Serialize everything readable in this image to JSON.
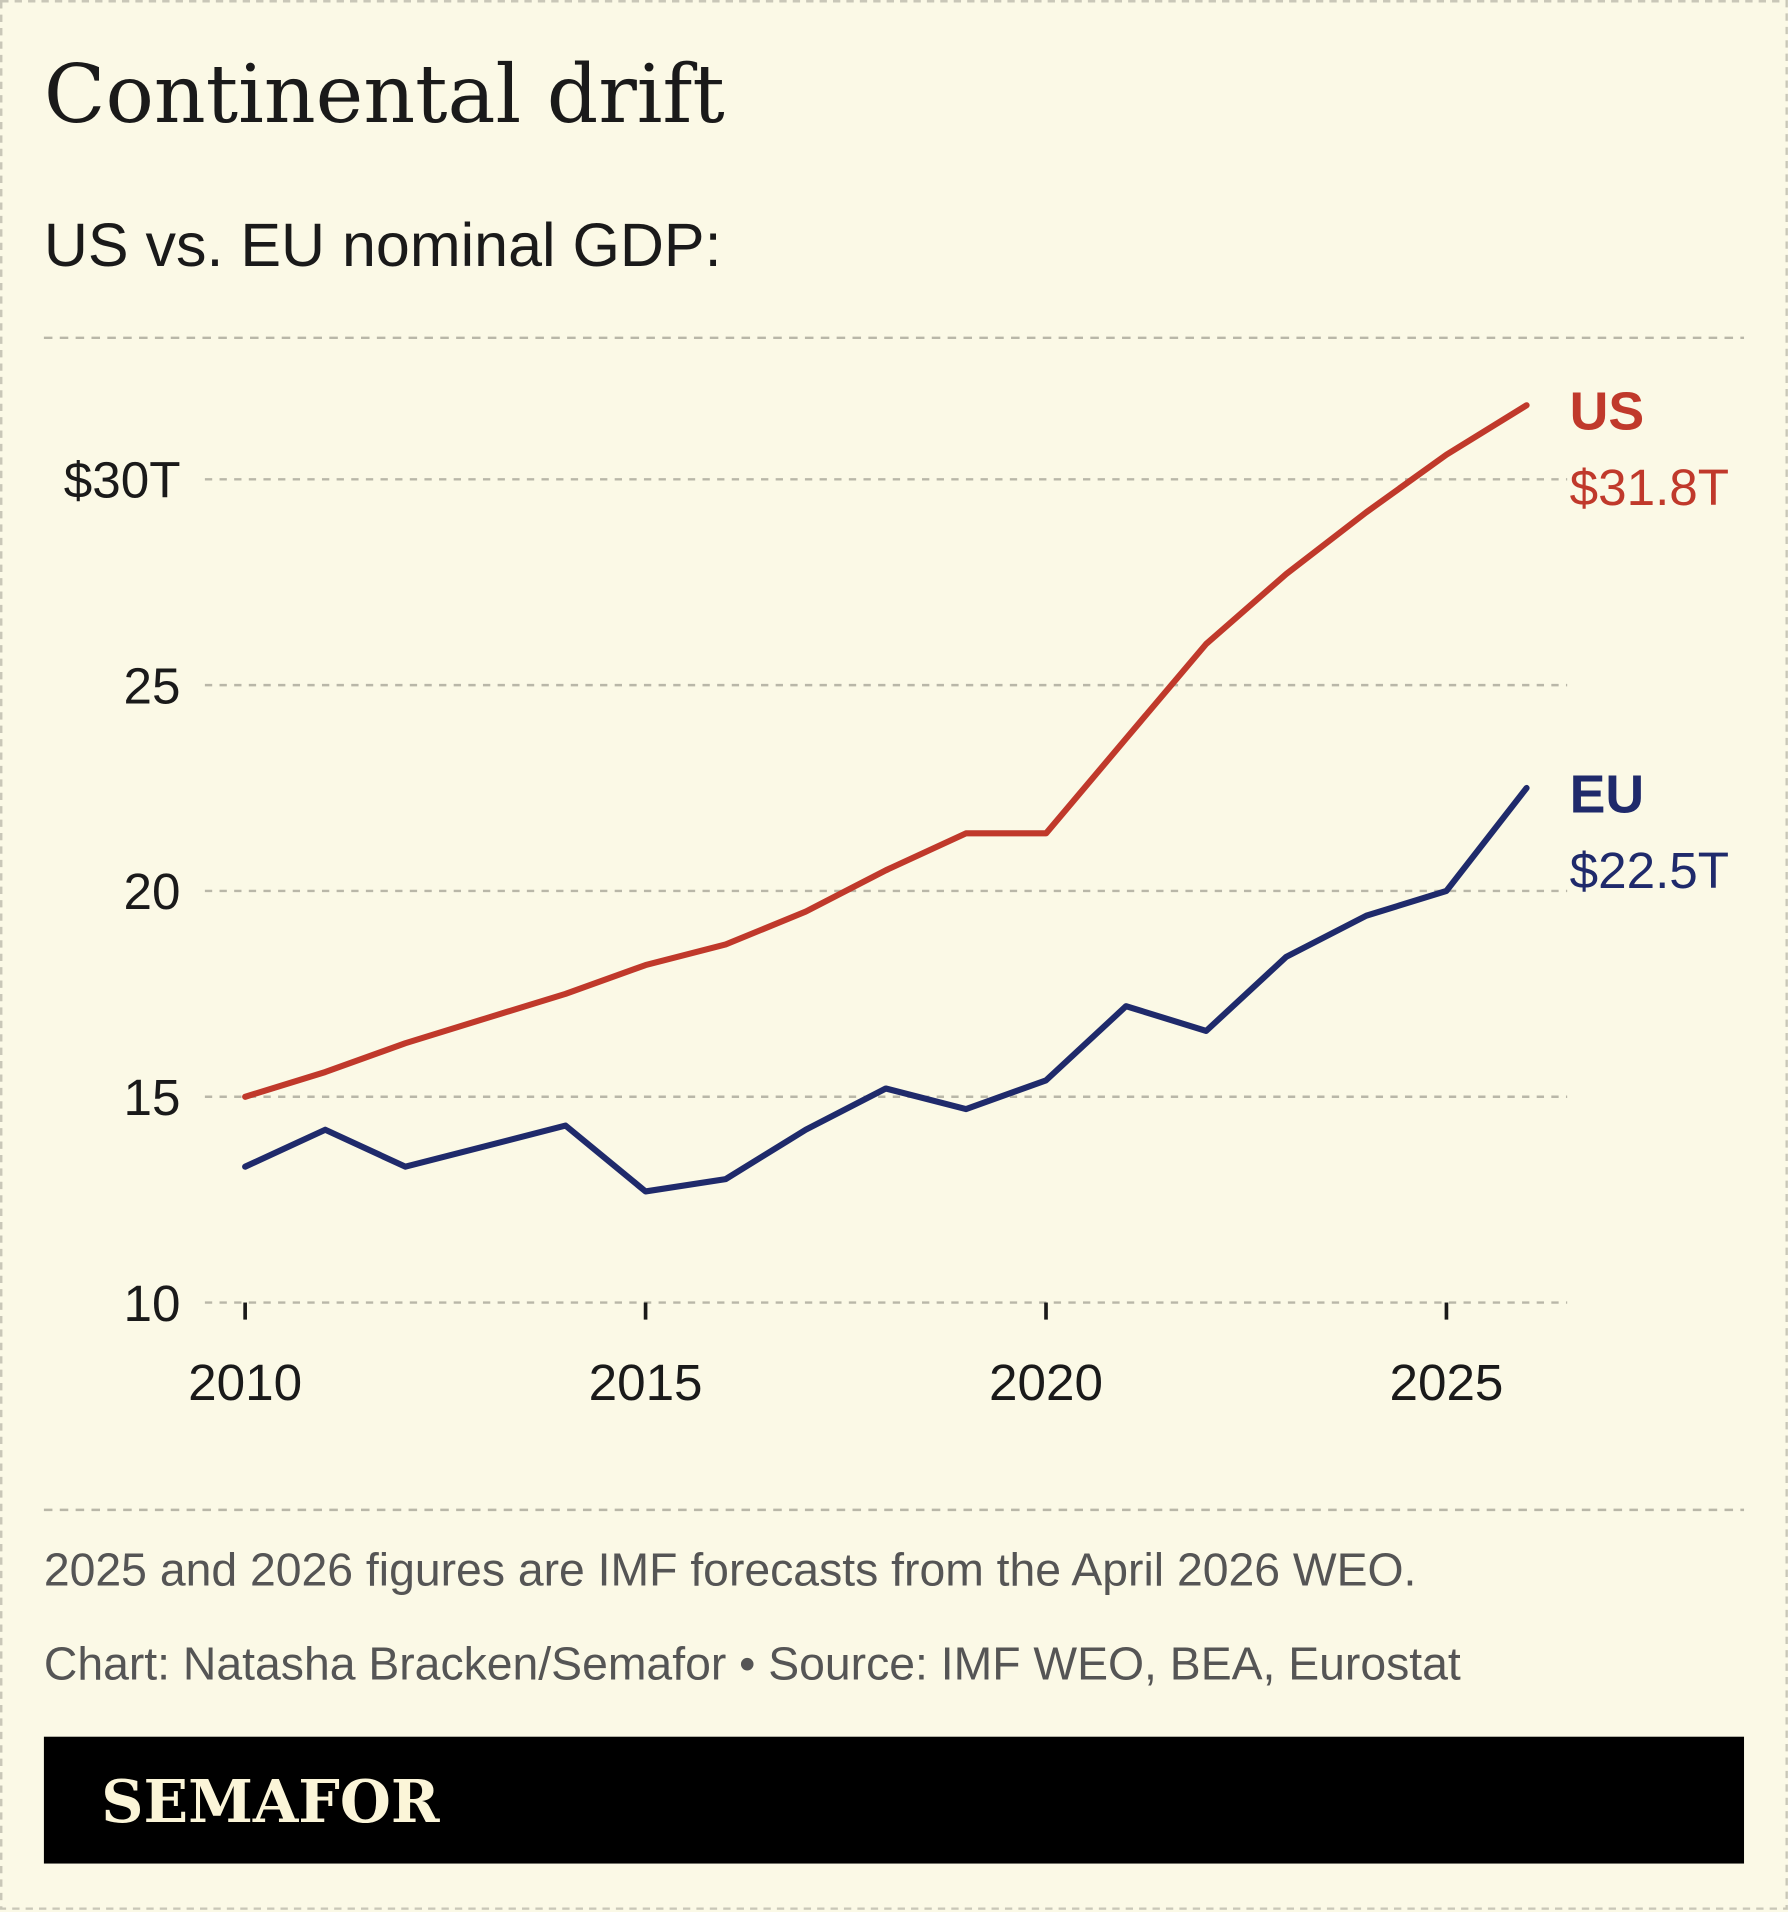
{
  "title": "Continental drift",
  "subtitle": "US vs. EU nominal GDP:",
  "note": "2025 and 2026 figures are IMF forecasts from the April 2026 WEO.",
  "credit": "Chart: Natasha Bracken/Semafor • Source: IMF WEO, BEA, Eurostat",
  "brand": "SEMAFOR",
  "colors": {
    "background": "#fbf9e6",
    "us": "#c0392b",
    "eu": "#1f2a6b",
    "grid": "#b9b7a8",
    "brand_bar": "#000000",
    "brand_text": "#fbf5d8"
  },
  "chart_data": {
    "type": "line",
    "x": [
      2010,
      2011,
      2012,
      2013,
      2014,
      2015,
      2016,
      2017,
      2018,
      2019,
      2020,
      2021,
      2022,
      2023,
      2024,
      2025,
      2026
    ],
    "series": [
      {
        "name": "US",
        "end_label": "$31.8T",
        "color": "#c0392b",
        "values": [
          15.0,
          15.6,
          16.3,
          16.9,
          17.5,
          18.2,
          18.7,
          19.5,
          20.5,
          21.4,
          21.4,
          23.7,
          26.0,
          27.7,
          29.2,
          30.6,
          31.8
        ]
      },
      {
        "name": "EU",
        "end_label": "$22.5T",
        "color": "#1f2a6b",
        "values": [
          13.3,
          14.2,
          13.3,
          13.8,
          14.3,
          12.7,
          13.0,
          14.2,
          15.2,
          14.7,
          15.4,
          17.2,
          16.6,
          18.4,
          19.4,
          20.0,
          22.5
        ]
      }
    ],
    "ylim": [
      10,
      30
    ],
    "yticks": [
      10,
      15,
      20,
      25,
      30
    ],
    "ytick_labels": [
      "10",
      "15",
      "20",
      "25",
      "$30T"
    ],
    "xticks": [
      2010,
      2015,
      2020,
      2025
    ],
    "xtick_labels": [
      "2010",
      "2015",
      "2020",
      "2025"
    ],
    "grid": true,
    "legend": "direct labels at line ends"
  }
}
